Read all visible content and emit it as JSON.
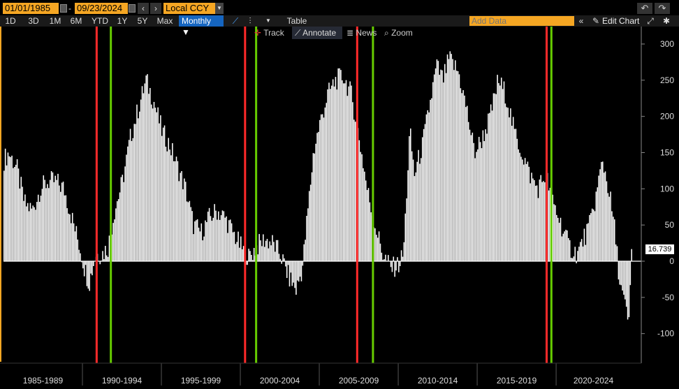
{
  "toolbar": {
    "start_date": "01/01/1985",
    "end_date": "09/23/2024",
    "dash": "-",
    "prev_icon": "‹",
    "next_icon": "›",
    "currency": "Local CCY",
    "undo_icon": "↶",
    "redo_icon": "↷"
  },
  "toolbar2": {
    "ranges": [
      "1D",
      "3D",
      "1M",
      "6M",
      "YTD",
      "1Y",
      "5Y",
      "Max"
    ],
    "frequency": "Monthly ▼",
    "table_label": "Table",
    "add_data_placeholder": "Add Data",
    "collapse_icon": "«",
    "edit_chart_label": "Edit Chart",
    "pencil_icon": "✎",
    "gear_icon": "✱"
  },
  "overlay": {
    "track": "Track",
    "annotate": "Annotate",
    "news": "News",
    "zoom": "Zoom"
  },
  "last_value_label": "16.739",
  "chart_data": {
    "type": "bar",
    "ylim": [
      -140,
      300
    ],
    "y_ticks": [
      300,
      250,
      200,
      150,
      100,
      50,
      0,
      -50,
      -100
    ],
    "x_start_year": 1985,
    "x_end_year": 2024.73,
    "period_labels": [
      "1985-1989",
      "1990-1994",
      "1995-1999",
      "2000-2004",
      "2005-2009",
      "2010-2014",
      "2015-2019",
      "2020-2024"
    ],
    "anchors": [
      [
        1985.0,
        140
      ],
      [
        1985.3,
        150
      ],
      [
        1985.8,
        130
      ],
      [
        1986.3,
        80
      ],
      [
        1986.8,
        70
      ],
      [
        1987.3,
        100
      ],
      [
        1987.8,
        110
      ],
      [
        1988.3,
        110
      ],
      [
        1988.8,
        100
      ],
      [
        1989.3,
        60
      ],
      [
        1989.8,
        20
      ],
      [
        1990.1,
        -10
      ],
      [
        1990.4,
        -30
      ],
      [
        1990.8,
        10
      ],
      [
        1991.2,
        10
      ],
      [
        1991.6,
        20
      ],
      [
        1992.0,
        70
      ],
      [
        1992.5,
        110
      ],
      [
        1993.0,
        170
      ],
      [
        1993.5,
        210
      ],
      [
        1994.0,
        250
      ],
      [
        1994.5,
        220
      ],
      [
        1995.0,
        180
      ],
      [
        1995.5,
        160
      ],
      [
        1996.0,
        130
      ],
      [
        1996.5,
        100
      ],
      [
        1997.0,
        50
      ],
      [
        1997.5,
        40
      ],
      [
        1998.0,
        60
      ],
      [
        1998.5,
        70
      ],
      [
        1999.0,
        60
      ],
      [
        1999.5,
        40
      ],
      [
        2000.0,
        20
      ],
      [
        2000.5,
        5
      ],
      [
        2001.0,
        20
      ],
      [
        2001.5,
        30
      ],
      [
        2002.0,
        25
      ],
      [
        2002.5,
        10
      ],
      [
        2003.0,
        -20
      ],
      [
        2003.5,
        -40
      ],
      [
        2003.9,
        -10
      ],
      [
        2004.2,
        60
      ],
      [
        2004.6,
        150
      ],
      [
        2005.0,
        190
      ],
      [
        2005.5,
        230
      ],
      [
        2006.0,
        250
      ],
      [
        2006.5,
        255
      ],
      [
        2007.0,
        230
      ],
      [
        2007.5,
        170
      ],
      [
        2008.0,
        100
      ],
      [
        2008.5,
        50
      ],
      [
        2009.0,
        10
      ],
      [
        2009.5,
        -10
      ],
      [
        2010.0,
        -5
      ],
      [
        2010.3,
        10
      ],
      [
        2010.7,
        180
      ],
      [
        2011.0,
        120
      ],
      [
        2011.5,
        160
      ],
      [
        2012.0,
        220
      ],
      [
        2012.4,
        270
      ],
      [
        2012.8,
        250
      ],
      [
        2013.2,
        280
      ],
      [
        2013.8,
        260
      ],
      [
        2014.3,
        210
      ],
      [
        2014.8,
        150
      ],
      [
        2015.3,
        170
      ],
      [
        2015.8,
        200
      ],
      [
        2016.3,
        250
      ],
      [
        2016.8,
        230
      ],
      [
        2017.3,
        180
      ],
      [
        2017.8,
        150
      ],
      [
        2018.3,
        120
      ],
      [
        2018.8,
        100
      ],
      [
        2019.3,
        120
      ],
      [
        2019.8,
        80
      ],
      [
        2020.3,
        50
      ],
      [
        2020.8,
        20
      ],
      [
        2021.3,
        10
      ],
      [
        2021.7,
        30
      ],
      [
        2022.1,
        50
      ],
      [
        2022.5,
        90
      ],
      [
        2022.9,
        140
      ],
      [
        2023.3,
        100
      ],
      [
        2023.7,
        40
      ],
      [
        2024.0,
        -30
      ],
      [
        2024.3,
        -60
      ],
      [
        2024.6,
        -90
      ],
      [
        2024.73,
        16.739
      ]
    ],
    "events": [
      {
        "year": 1990.9,
        "color": "#ff2a2a"
      },
      {
        "year": 1991.8,
        "color": "#66cc00"
      },
      {
        "year": 2000.3,
        "color": "#ff2a2a"
      },
      {
        "year": 2001.0,
        "color": "#66cc00"
      },
      {
        "year": 2007.4,
        "color": "#ff2a2a"
      },
      {
        "year": 2008.4,
        "color": "#66cc00"
      },
      {
        "year": 2019.4,
        "color": "#ff2a2a"
      },
      {
        "year": 2019.7,
        "color": "#66cc00"
      }
    ],
    "last_value": 16.739,
    "bar_color": "#ffffff",
    "grid": true
  }
}
